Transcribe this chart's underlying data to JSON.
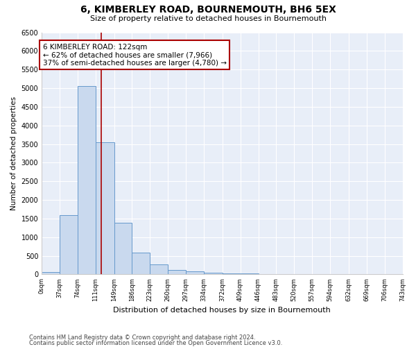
{
  "title": "6, KIMBERLEY ROAD, BOURNEMOUTH, BH6 5EX",
  "subtitle": "Size of property relative to detached houses in Bournemouth",
  "xlabel": "Distribution of detached houses by size in Bournemouth",
  "ylabel": "Number of detached properties",
  "footnote1": "Contains HM Land Registry data © Crown copyright and database right 2024.",
  "footnote2": "Contains public sector information licensed under the Open Government Licence v3.0.",
  "bar_color": "#c9d9ee",
  "bar_edge_color": "#6699cc",
  "plot_bg_color": "#e8eef8",
  "grid_color": "#ffffff",
  "red_color": "#aa0000",
  "annotation_line1": "6 KIMBERLEY ROAD: 122sqm",
  "annotation_line2": "← 62% of detached houses are smaller (7,966)",
  "annotation_line3": "37% of semi-detached houses are larger (4,780) →",
  "red_line_x": 122,
  "bin_edges": [
    0,
    37,
    74,
    111,
    149,
    186,
    223,
    260,
    297,
    334,
    372,
    409,
    446,
    483,
    520,
    557,
    594,
    632,
    669,
    706,
    743
  ],
  "bar_heights": [
    55,
    1600,
    5050,
    3550,
    1380,
    580,
    265,
    120,
    75,
    48,
    35,
    18,
    8,
    4,
    2,
    2,
    1,
    0,
    0,
    0
  ],
  "ylim": [
    0,
    6500
  ],
  "yticks": [
    0,
    500,
    1000,
    1500,
    2000,
    2500,
    3000,
    3500,
    4000,
    4500,
    5000,
    5500,
    6000,
    6500
  ]
}
